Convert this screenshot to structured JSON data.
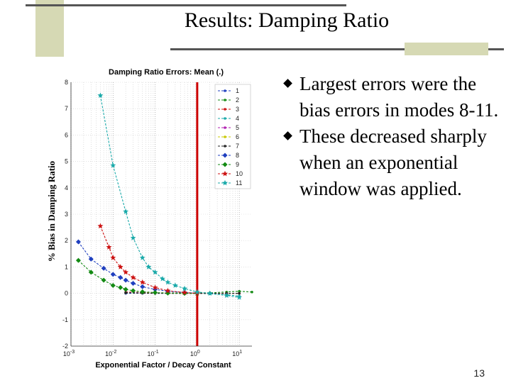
{
  "slide": {
    "title": "Results: Damping Ratio",
    "bullets": [
      "Largest errors were the bias errors in modes 8-11.",
      "These decreased sharply when an exponential window was applied."
    ],
    "page_number": "13"
  },
  "colors": {
    "decoration": "#d6d9b4",
    "vertical_marker": "#cc0000"
  },
  "chart_data": {
    "type": "line",
    "title": "Damping Ratio Errors: Mean (.)",
    "xlabel": "Exponential Factor / Decay Constant",
    "ylabel": "% Bias in Damping Ratio",
    "xscale": "log",
    "xlim": [
      0.001,
      20
    ],
    "ylim": [
      -2,
      8
    ],
    "xticks": [
      {
        "v": 0.001,
        "b": "10",
        "e": "-3"
      },
      {
        "v": 0.01,
        "b": "10",
        "e": "-2"
      },
      {
        "v": 0.1,
        "b": "10",
        "e": "-1"
      },
      {
        "v": 1,
        "b": "10",
        "e": "0"
      },
      {
        "v": 10,
        "b": "10",
        "e": "1"
      }
    ],
    "yticks": [
      -2,
      -1,
      0,
      1,
      2,
      3,
      4,
      5,
      6,
      7,
      8
    ],
    "grid": true,
    "vertical_line_x": 1,
    "legend_position": "top-right",
    "series": [
      {
        "name": "1",
        "color": "#1f3fbf",
        "marker": "dot",
        "x": [
          0.02,
          0.05,
          0.1,
          0.2,
          0.5,
          1,
          2,
          5,
          10
        ],
        "y": [
          0.0,
          0.0,
          0.0,
          0.0,
          0.0,
          0.0,
          0.0,
          0.0,
          0.0
        ]
      },
      {
        "name": "2",
        "color": "#138a13",
        "marker": "dot",
        "x": [
          0.02,
          0.05,
          0.1,
          0.2,
          0.5,
          1,
          2,
          5,
          10,
          20
        ],
        "y": [
          0.02,
          0.02,
          0.01,
          0.01,
          0.01,
          0.02,
          0.02,
          0.05,
          0.08,
          0.05
        ]
      },
      {
        "name": "3",
        "color": "#cc1111",
        "marker": "dot",
        "x": [
          0.02,
          0.05,
          0.1,
          0.2,
          0.5,
          1,
          2,
          5,
          10
        ],
        "y": [
          0.05,
          0.03,
          0.02,
          0.01,
          0.0,
          0.0,
          0.0,
          0.0,
          0.0
        ]
      },
      {
        "name": "4",
        "color": "#19a9a9",
        "marker": "dot",
        "x": [
          0.02,
          0.05,
          0.1,
          0.2,
          0.5,
          1,
          2,
          5,
          10
        ],
        "y": [
          0.03,
          0.02,
          0.01,
          0.0,
          0.0,
          0.0,
          -0.02,
          -0.06,
          -0.1
        ]
      },
      {
        "name": "5",
        "color": "#b01fb0",
        "marker": "dot",
        "x": [
          0.02,
          0.05,
          0.1,
          0.2,
          0.5,
          1,
          2,
          5,
          10
        ],
        "y": [
          0.03,
          0.02,
          0.01,
          0.0,
          0.0,
          0.0,
          0.0,
          0.0,
          0.0
        ]
      },
      {
        "name": "6",
        "color": "#c8c800",
        "marker": "dot",
        "x": [
          0.02,
          0.05,
          0.1,
          0.2,
          0.5,
          1,
          2,
          5,
          10
        ],
        "y": [
          0.02,
          0.01,
          0.01,
          0.0,
          0.0,
          0.0,
          0.0,
          0.0,
          0.0
        ]
      },
      {
        "name": "7",
        "color": "#222222",
        "marker": "dot",
        "x": [
          0.02,
          0.05,
          0.1,
          0.2,
          0.5,
          1,
          2,
          5,
          10
        ],
        "y": [
          0.02,
          0.01,
          0.0,
          0.0,
          0.0,
          0.0,
          0.0,
          0.0,
          0.0
        ]
      },
      {
        "name": "8",
        "color": "#1f3fbf",
        "marker": "diamond",
        "x": [
          0.0015,
          0.003,
          0.006,
          0.01,
          0.015,
          0.02,
          0.03,
          0.05,
          0.1,
          0.2,
          0.5,
          1
        ],
        "y": [
          1.95,
          1.3,
          0.95,
          0.72,
          0.6,
          0.5,
          0.38,
          0.25,
          0.15,
          0.08,
          0.03,
          0.01
        ]
      },
      {
        "name": "9",
        "color": "#138a13",
        "marker": "diamond",
        "x": [
          0.0015,
          0.003,
          0.006,
          0.01,
          0.015,
          0.02,
          0.03,
          0.05,
          0.1,
          0.2,
          0.5,
          1
        ],
        "y": [
          1.25,
          0.8,
          0.5,
          0.3,
          0.22,
          0.15,
          0.1,
          0.06,
          0.03,
          0.01,
          0.0,
          0.0
        ]
      },
      {
        "name": "10",
        "color": "#cc1111",
        "marker": "star",
        "x": [
          0.005,
          0.008,
          0.01,
          0.015,
          0.02,
          0.03,
          0.05,
          0.1,
          0.2,
          0.5,
          1
        ],
        "y": [
          2.55,
          1.75,
          1.35,
          1.0,
          0.8,
          0.6,
          0.42,
          0.22,
          0.1,
          0.03,
          0.0
        ]
      },
      {
        "name": "11",
        "color": "#19a9a9",
        "marker": "star",
        "x": [
          0.005,
          0.01,
          0.02,
          0.03,
          0.05,
          0.07,
          0.1,
          0.15,
          0.2,
          0.3,
          0.5,
          1,
          2,
          5,
          10
        ],
        "y": [
          7.5,
          4.85,
          3.1,
          2.1,
          1.35,
          1.0,
          0.8,
          0.55,
          0.42,
          0.3,
          0.18,
          0.05,
          0.0,
          -0.08,
          -0.15
        ]
      }
    ]
  }
}
